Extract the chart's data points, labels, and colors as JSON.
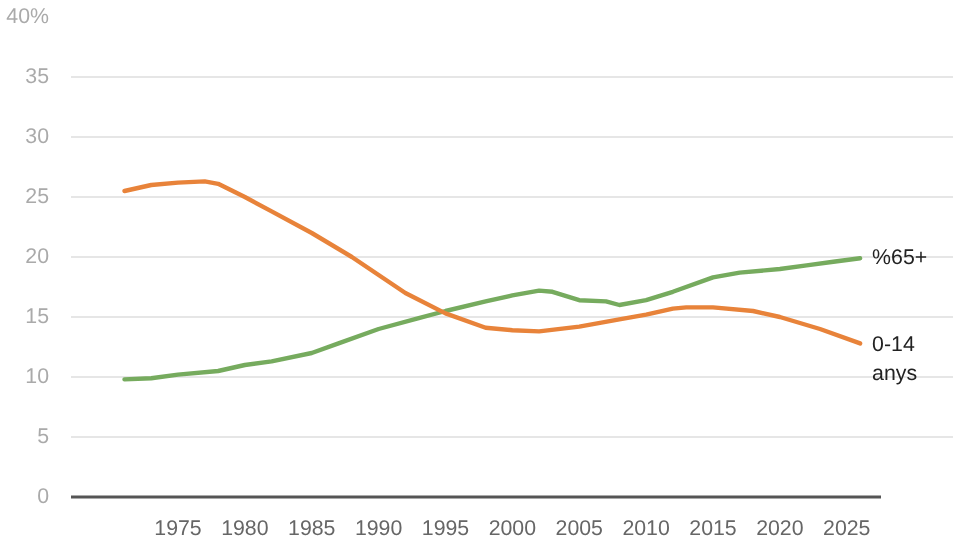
{
  "chart_data": {
    "type": "line",
    "xlim": [
      1967,
      2027.5
    ],
    "ylim": [
      0,
      40
    ],
    "xticks": [
      1975,
      1980,
      1985,
      1990,
      1995,
      2000,
      2005,
      2010,
      2015,
      2020,
      2025
    ],
    "yticks": [
      0,
      5,
      10,
      15,
      20,
      25,
      30,
      35,
      {
        "value": 40,
        "label": "40%"
      }
    ],
    "grid": "y",
    "legend": false,
    "line_style": "solid",
    "marker": "none",
    "series": [
      {
        "name": "%65+",
        "color": "#76ab5e",
        "x": [
          1971,
          1973,
          1975,
          1978,
          1980,
          1982,
          1985,
          1987,
          1990,
          1993,
          1995,
          1998,
          2000,
          2002,
          2003,
          2005,
          2007,
          2008,
          2010,
          2012,
          2015,
          2017,
          2020,
          2022,
          2024,
          2026
        ],
        "values": [
          9.8,
          9.9,
          10.2,
          10.5,
          11,
          11.3,
          12,
          12.8,
          14,
          14.9,
          15.5,
          16.3,
          16.8,
          17.2,
          17.1,
          16.4,
          16.3,
          16.0,
          16.4,
          17.1,
          18.3,
          18.7,
          19.0,
          19.3,
          19.6,
          19.9
        ]
      },
      {
        "name": "0-14\nanys",
        "color": "#e8833a",
        "x": [
          1971,
          1973,
          1975,
          1977,
          1978,
          1980,
          1982,
          1985,
          1988,
          1990,
          1992,
          1995,
          1998,
          2000,
          2002,
          2005,
          2008,
          2010,
          2012,
          2013,
          2015,
          2018,
          2020,
          2023,
          2026
        ],
        "values": [
          25.5,
          26.0,
          26.2,
          26.3,
          26.1,
          25.0,
          23.8,
          22.0,
          20.0,
          18.5,
          17.0,
          15.3,
          14.1,
          13.9,
          13.8,
          14.2,
          14.8,
          15.2,
          15.7,
          15.8,
          15.8,
          15.5,
          15.0,
          14.0,
          12.8
        ]
      }
    ]
  }
}
